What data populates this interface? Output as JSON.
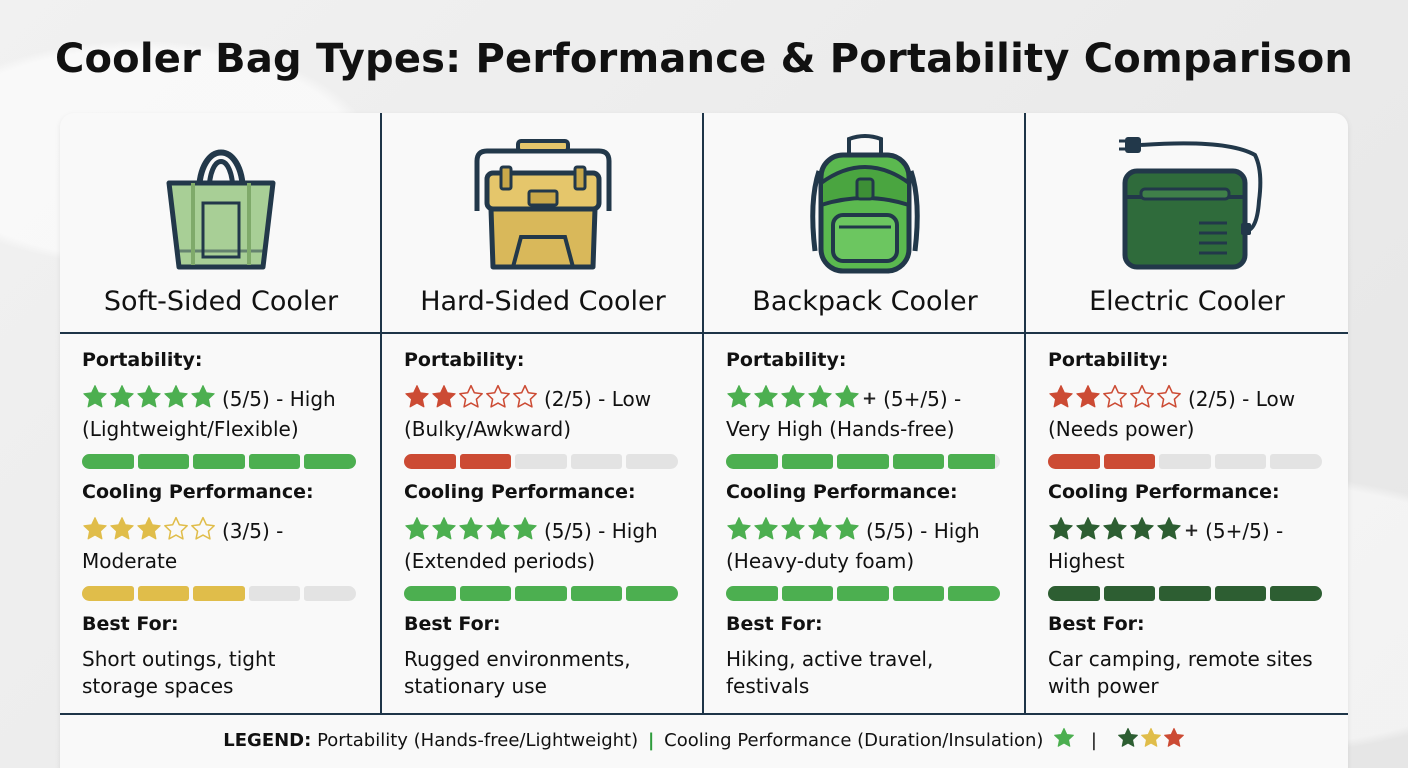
{
  "title": "Cooler Bag Types: Performance & Portability Comparison",
  "labels": {
    "portability": "Portability:",
    "cooling": "Cooling Performance:",
    "best_for": "Best For:"
  },
  "coolers": [
    {
      "name": "Soft-Sided Cooler",
      "icon": "tote-bag-icon",
      "portability": {
        "score": 5,
        "plus": false,
        "color": "#4caf50",
        "line1": "(5/5) - High",
        "line2": "(Lightweight/Flexible)",
        "fill": 1.0
      },
      "cooling": {
        "score": 3,
        "plus": false,
        "color": "#e0bd4a",
        "line1": "(3/5) -",
        "line2": "Moderate",
        "fill": 0.6
      },
      "best_for": [
        "Short outings, tight",
        "storage spaces"
      ]
    },
    {
      "name": "Hard-Sided Cooler",
      "icon": "hard-cooler-icon",
      "portability": {
        "score": 2,
        "plus": false,
        "color": "#cc4b34",
        "line1": "(2/5) - Low",
        "line2": "(Bulky/Awkward)",
        "fill": 0.4
      },
      "cooling": {
        "score": 5,
        "plus": false,
        "color": "#4caf50",
        "line1": "(5/5) - High",
        "line2": "(Extended periods)",
        "fill": 1.0
      },
      "best_for": [
        "Rugged environments,",
        "stationary use"
      ]
    },
    {
      "name": "Backpack Cooler",
      "icon": "backpack-icon",
      "portability": {
        "score": 5,
        "plus": true,
        "color": "#4caf50",
        "line1": "(5+/5) -",
        "line2": "Very High (Hands-free)",
        "fill": 0.98
      },
      "cooling": {
        "score": 5,
        "plus": false,
        "color": "#4caf50",
        "line1": "(5/5) - High",
        "line2": "(Heavy-duty foam)",
        "fill": 1.0
      },
      "best_for": [
        "Hiking, active travel,",
        "festivals"
      ]
    },
    {
      "name": "Electric Cooler",
      "icon": "electric-cooler-icon",
      "portability": {
        "score": 2,
        "plus": false,
        "color": "#cc4b34",
        "line1": "(2/5) - Low",
        "line2": "(Needs power)",
        "fill": 0.4
      },
      "cooling": {
        "score": 5,
        "plus": true,
        "color": "#2d5e32",
        "line1": "(5+/5) -",
        "line2": "Highest",
        "fill": 1.0
      },
      "best_for": [
        "Car camping, remote sites",
        "with power"
      ]
    }
  ],
  "legend": {
    "label": "LEGEND:",
    "portability": "Portability (Hands-free/Lightweight)",
    "cooling": "Cooling Performance (Duration/Insulation)",
    "star_colors": [
      "#2d5e32",
      "#e0bd4a",
      "#cc4b34"
    ],
    "green": "#4caf50"
  }
}
